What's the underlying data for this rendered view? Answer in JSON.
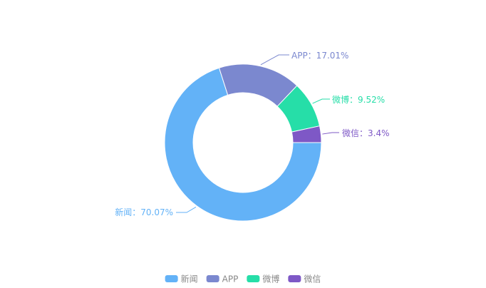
{
  "chart_data": {
    "type": "pie",
    "variant": "donut",
    "title": "",
    "label_separator": "：",
    "slices": [
      {
        "name": "新闻",
        "label": "新闻：70.07%",
        "percent": 70.07,
        "color": "#63b2f7"
      },
      {
        "name": "APP",
        "label": "APP：17.01%",
        "percent": 17.01,
        "color": "#7b88cf"
      },
      {
        "name": "微博",
        "label": "微博：9.52%",
        "percent": 9.52,
        "color": "#26dea8"
      },
      {
        "name": "微信",
        "label": "微信：3.4%",
        "percent": 3.4,
        "color": "#7e58c6"
      }
    ],
    "legend": {
      "position": "bottom-center",
      "items": [
        "新闻",
        "APP",
        "微博",
        "微信"
      ],
      "text_color": "#888888"
    }
  }
}
